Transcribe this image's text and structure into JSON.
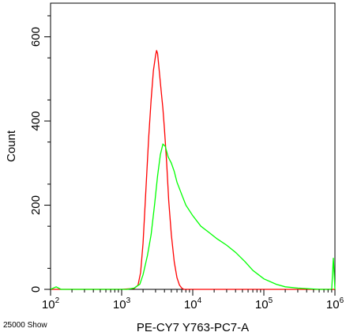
{
  "chart_data": {
    "type": "line",
    "title": "",
    "xlabel": "PE-CY7 Y763-PC7-A",
    "ylabel": "Count",
    "x_scale": "log",
    "xlim": [
      100,
      1000000
    ],
    "ylim": [
      0,
      680
    ],
    "x_ticks": [
      {
        "base": "10",
        "exp": "2",
        "value": 100
      },
      {
        "base": "10",
        "exp": "3",
        "value": 1000
      },
      {
        "base": "10",
        "exp": "4",
        "value": 10000
      },
      {
        "base": "10",
        "exp": "5",
        "value": 100000
      },
      {
        "base": "10",
        "exp": "6",
        "value": 1000000
      }
    ],
    "y_ticks": [
      "0",
      "200",
      "400",
      "600"
    ],
    "y_tick_values": [
      0,
      200,
      400,
      600
    ],
    "grid": false,
    "footer_note": "25000 Show",
    "series": [
      {
        "color": "#ff0000",
        "points": [
          [
            100,
            0
          ],
          [
            1000,
            0
          ],
          [
            1500,
            2
          ],
          [
            1700,
            10
          ],
          [
            1850,
            40
          ],
          [
            2000,
            110
          ],
          [
            2200,
            240
          ],
          [
            2400,
            360
          ],
          [
            2600,
            450
          ],
          [
            2800,
            520
          ],
          [
            3000,
            555
          ],
          [
            3100,
            568
          ],
          [
            3200,
            560
          ],
          [
            3400,
            515
          ],
          [
            3600,
            470
          ],
          [
            3800,
            430
          ],
          [
            4000,
            380
          ],
          [
            4300,
            300
          ],
          [
            4600,
            210
          ],
          [
            5000,
            130
          ],
          [
            5500,
            65
          ],
          [
            6000,
            28
          ],
          [
            6500,
            10
          ],
          [
            7000,
            3
          ],
          [
            7500,
            0
          ],
          [
            1000000,
            0
          ]
        ]
      },
      {
        "color": "#00ff00",
        "points": [
          [
            100,
            0
          ],
          [
            120,
            6
          ],
          [
            140,
            0
          ],
          [
            1200,
            0
          ],
          [
            1500,
            3
          ],
          [
            1800,
            12
          ],
          [
            2000,
            35
          ],
          [
            2300,
            80
          ],
          [
            2600,
            130
          ],
          [
            2900,
            200
          ],
          [
            3200,
            270
          ],
          [
            3500,
            320
          ],
          [
            3800,
            345
          ],
          [
            4100,
            340
          ],
          [
            4500,
            315
          ],
          [
            5000,
            300
          ],
          [
            5500,
            280
          ],
          [
            6000,
            255
          ],
          [
            7000,
            225
          ],
          [
            8000,
            200
          ],
          [
            10000,
            175
          ],
          [
            13000,
            150
          ],
          [
            17000,
            135
          ],
          [
            22000,
            120
          ],
          [
            30000,
            105
          ],
          [
            40000,
            88
          ],
          [
            55000,
            65
          ],
          [
            70000,
            45
          ],
          [
            100000,
            25
          ],
          [
            150000,
            12
          ],
          [
            200000,
            6
          ],
          [
            300000,
            3
          ],
          [
            600000,
            0
          ],
          [
            900000,
            0
          ],
          [
            950000,
            75
          ],
          [
            1000000,
            0
          ]
        ]
      }
    ]
  }
}
